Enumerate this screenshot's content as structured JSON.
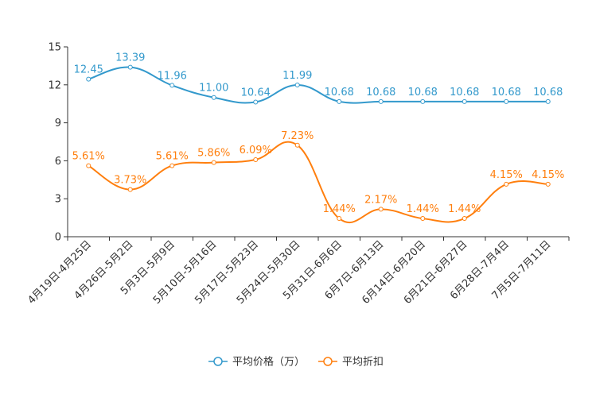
{
  "chart_data": {
    "type": "line",
    "title": "",
    "xlabel": "",
    "ylabel": "",
    "ylim": [
      0,
      15
    ],
    "yticks": [
      0,
      3,
      6,
      9,
      12,
      15
    ],
    "grid": false,
    "legend_position": "bottom",
    "categories": [
      "4月19日-4月25日",
      "4月26日-5月2日",
      "5月3日-5月9日",
      "5月10日-5月16日",
      "5月17日-5月23日",
      "5月24日-5月30日",
      "5月31日-6月6日",
      "6月7日-6月13日",
      "6月14日-6月20日",
      "6月21日-6月27日",
      "6月28日-7月4日",
      "7月5日-7月11日"
    ],
    "series": [
      {
        "name": "平均价格（万）",
        "color": "#3399cc",
        "values": [
          12.45,
          13.39,
          11.96,
          11.0,
          10.64,
          11.99,
          10.68,
          10.68,
          10.68,
          10.68,
          10.68,
          10.68
        ],
        "labels": [
          "12.45",
          "13.39",
          "11.96",
          "11.00",
          "10.64",
          "11.99",
          "10.68",
          "10.68",
          "10.68",
          "10.68",
          "10.68",
          "10.68"
        ]
      },
      {
        "name": "平均折扣",
        "color": "#ff7f0e",
        "values": [
          5.61,
          3.73,
          5.61,
          5.86,
          6.09,
          7.23,
          1.44,
          2.17,
          1.44,
          1.44,
          4.15,
          4.15
        ],
        "labels": [
          "5.61%",
          "3.73%",
          "5.61%",
          "5.86%",
          "6.09%",
          "7.23%",
          "1.44%",
          "2.17%",
          "1.44%",
          "1.44%",
          "4.15%",
          "4.15%"
        ]
      }
    ]
  }
}
